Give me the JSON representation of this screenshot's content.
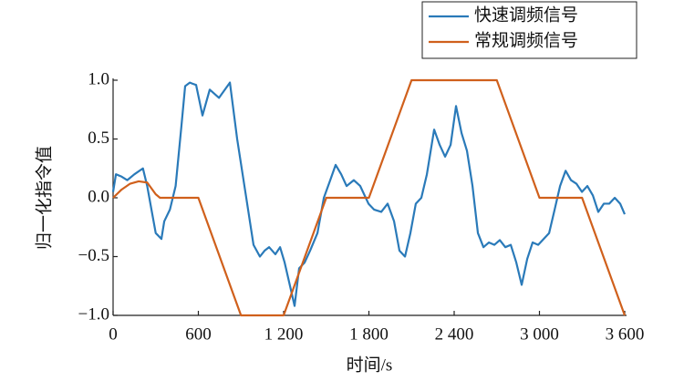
{
  "chart_data": {
    "type": "line",
    "xlabel": "时间/s",
    "ylabel": "归一化指令值",
    "xlim": [
      0,
      3600
    ],
    "ylim": [
      -1,
      1
    ],
    "xticks": [
      0,
      600,
      {
        "value": 1200,
        "label": "1 200"
      },
      {
        "value": 1800,
        "label": "1 800"
      },
      {
        "value": 2400,
        "label": "2 400"
      },
      {
        "value": 3000,
        "label": "3 000"
      },
      {
        "value": 3600,
        "label": "3 600"
      }
    ],
    "yticks": [
      {
        "value": -1,
        "label": "−1.0"
      },
      {
        "value": -0.5,
        "label": "−0.5"
      },
      {
        "value": 0,
        "label": "0.0"
      },
      0.5,
      {
        "value": 1,
        "label": "1.0"
      }
    ],
    "legend": "top-right",
    "series": [
      {
        "name": "快速调频信号",
        "color": "#2a7ab9",
        "x": [
          0,
          20,
          60,
          100,
          150,
          210,
          240,
          270,
          300,
          340,
          360,
          400,
          440,
          480,
          507,
          540,
          560,
          584,
          629,
          680,
          745,
          822,
          873,
          937,
          988,
          1033,
          1066,
          1098,
          1142,
          1175,
          1207,
          1245,
          1277,
          1309,
          1348,
          1386,
          1438,
          1483,
          1528,
          1566,
          1605,
          1643,
          1694,
          1739,
          1797,
          1836,
          1887,
          1932,
          1977,
          2015,
          2054,
          2092,
          2130,
          2169,
          2208,
          2259,
          2298,
          2336,
          2375,
          2413,
          2452,
          2490,
          2529,
          2567,
          2606,
          2644,
          2683,
          2721,
          2760,
          2798,
          2837,
          2875,
          2914,
          2952,
          2991,
          3030,
          3068,
          3107,
          3145,
          3184,
          3222,
          3260,
          3299,
          3337,
          3376,
          3414,
          3453,
          3491,
          3530,
          3568,
          3600
        ],
        "values": [
          0.05,
          0.2,
          0.18,
          0.15,
          0.2,
          0.25,
          0.1,
          -0.1,
          -0.3,
          -0.35,
          -0.2,
          -0.1,
          0.1,
          0.6,
          0.95,
          0.98,
          0.97,
          0.96,
          0.7,
          0.92,
          0.85,
          0.98,
          0.5,
          0.0,
          -0.4,
          -0.5,
          -0.45,
          -0.42,
          -0.48,
          -0.42,
          -0.55,
          -0.75,
          -0.92,
          -0.6,
          -0.55,
          -0.45,
          -0.3,
          0.0,
          0.15,
          0.28,
          0.2,
          0.1,
          0.15,
          0.1,
          -0.05,
          -0.1,
          -0.12,
          -0.05,
          -0.2,
          -0.45,
          -0.5,
          -0.3,
          -0.05,
          0.0,
          0.2,
          0.58,
          0.45,
          0.35,
          0.45,
          0.78,
          0.55,
          0.4,
          0.1,
          -0.3,
          -0.42,
          -0.38,
          -0.4,
          -0.36,
          -0.42,
          -0.4,
          -0.55,
          -0.74,
          -0.52,
          -0.38,
          -0.4,
          -0.35,
          -0.3,
          -0.1,
          0.1,
          0.23,
          0.15,
          0.12,
          0.05,
          0.1,
          0.02,
          -0.12,
          -0.05,
          -0.05,
          0.0,
          -0.05,
          -0.14
        ]
      },
      {
        "name": "常规调频信号",
        "color": "#d0601c",
        "x": [
          0,
          60,
          120,
          180,
          240,
          300,
          330,
          600,
          900,
          1200,
          1500,
          1800,
          2100,
          2700,
          3000,
          3300,
          3600
        ],
        "values": [
          0,
          0.07,
          0.12,
          0.14,
          0.13,
          0.03,
          0,
          0,
          -1,
          -1,
          0,
          0,
          1,
          1,
          0,
          0,
          -1
        ]
      }
    ]
  }
}
